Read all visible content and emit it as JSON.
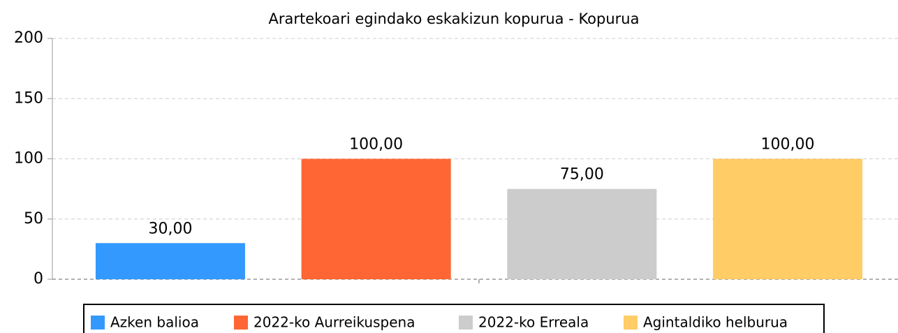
{
  "chart_data": {
    "type": "bar",
    "title": "Arartekoari egindako eskakizun kopurua - Kopurua",
    "categories": [
      null
    ],
    "series": [
      {
        "name": "Azken balioa",
        "color": "#3399ff",
        "values": [
          30
        ],
        "value_labels": [
          "30,00"
        ]
      },
      {
        "name": "2022-ko Aurreikuspena",
        "color": "#ff6633",
        "values": [
          100
        ],
        "value_labels": [
          "100,00"
        ]
      },
      {
        "name": "2022-ko Erreala",
        "color": "#cccccc",
        "values": [
          75
        ],
        "value_labels": [
          "75,00"
        ]
      },
      {
        "name": "Agintaldiko helburua",
        "color": "#ffcc66",
        "values": [
          100
        ],
        "value_labels": [
          "100,00"
        ]
      }
    ],
    "ylim": [
      0,
      200
    ],
    "yticks": [
      0,
      50,
      100,
      150,
      200
    ],
    "grid": true,
    "legend": "bottom"
  }
}
